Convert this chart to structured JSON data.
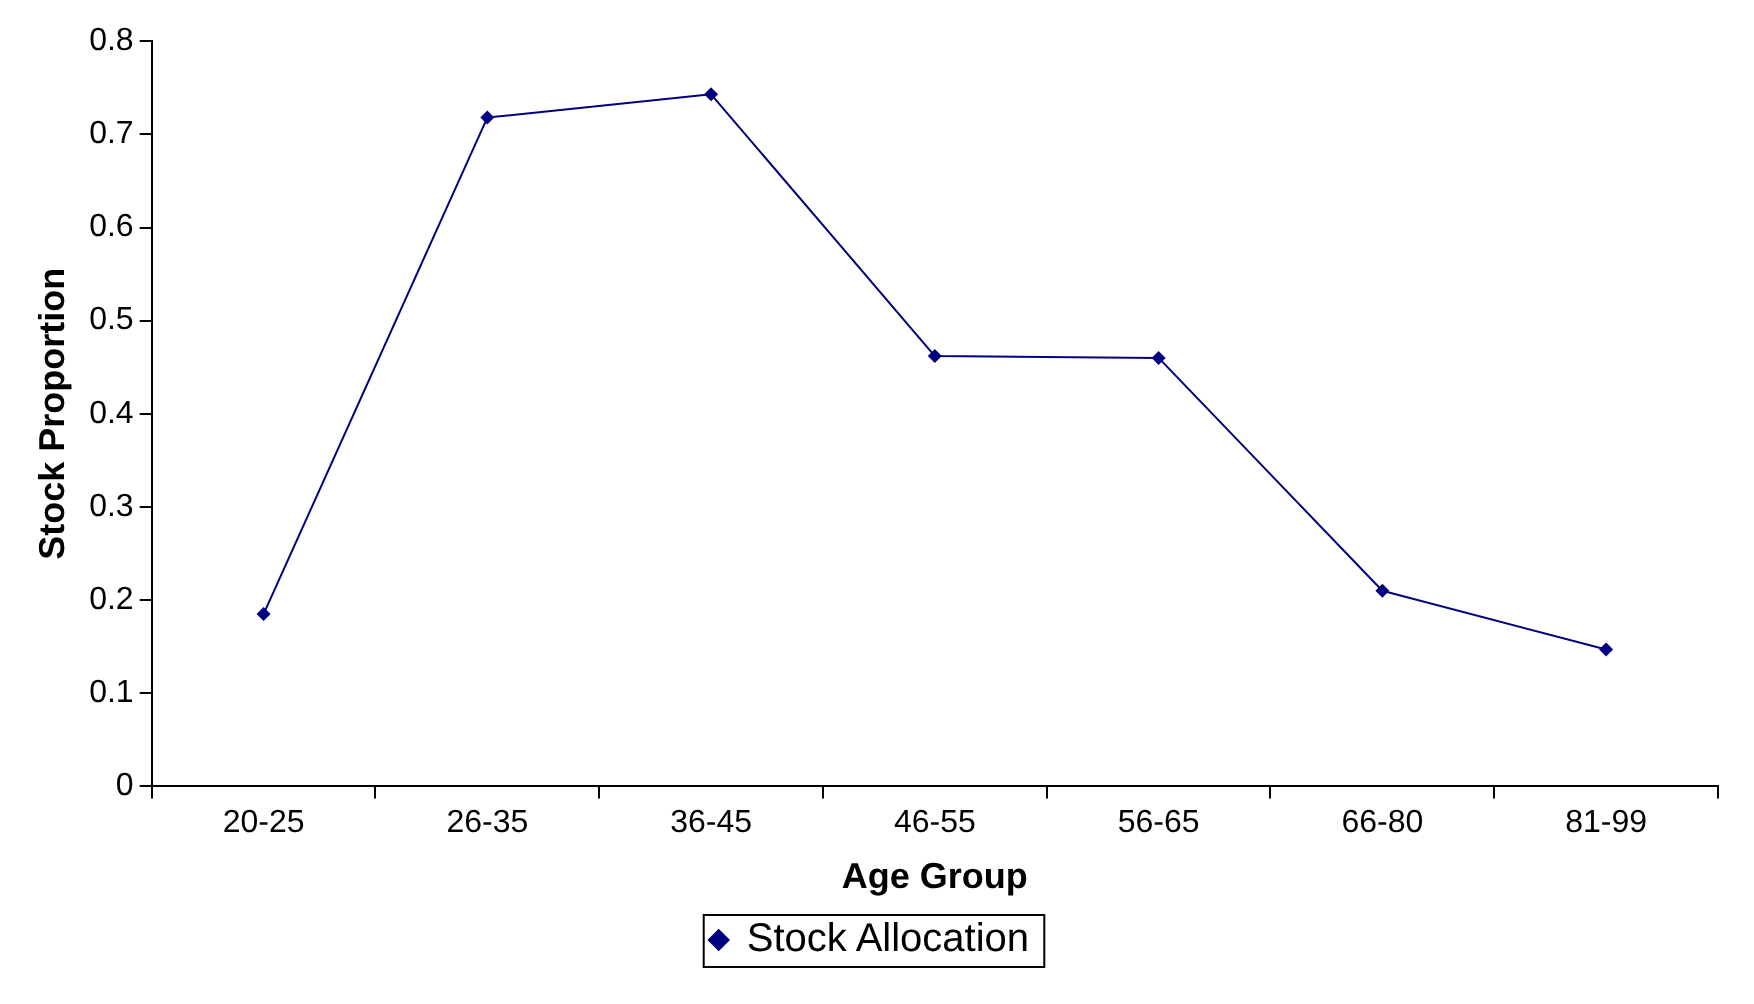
{
  "chart_data": {
    "type": "line",
    "xlabel": "Age Group",
    "ylabel": "Stock Proportion",
    "categories": [
      "20-25",
      "26-35",
      "36-45",
      "46-55",
      "56-65",
      "66-80",
      "81-99"
    ],
    "series": [
      {
        "name": "Stock Allocation",
        "color": "#000080",
        "values": [
          0.185,
          0.718,
          0.743,
          0.462,
          0.46,
          0.21,
          0.147
        ]
      }
    ],
    "ylim": [
      0,
      0.8
    ],
    "yticks": [
      0,
      0.1,
      0.2,
      0.3,
      0.4,
      0.5,
      0.6,
      0.7,
      0.8
    ],
    "grid": false,
    "legend": "bottom",
    "marker": "diamond",
    "line_style": "solid"
  }
}
